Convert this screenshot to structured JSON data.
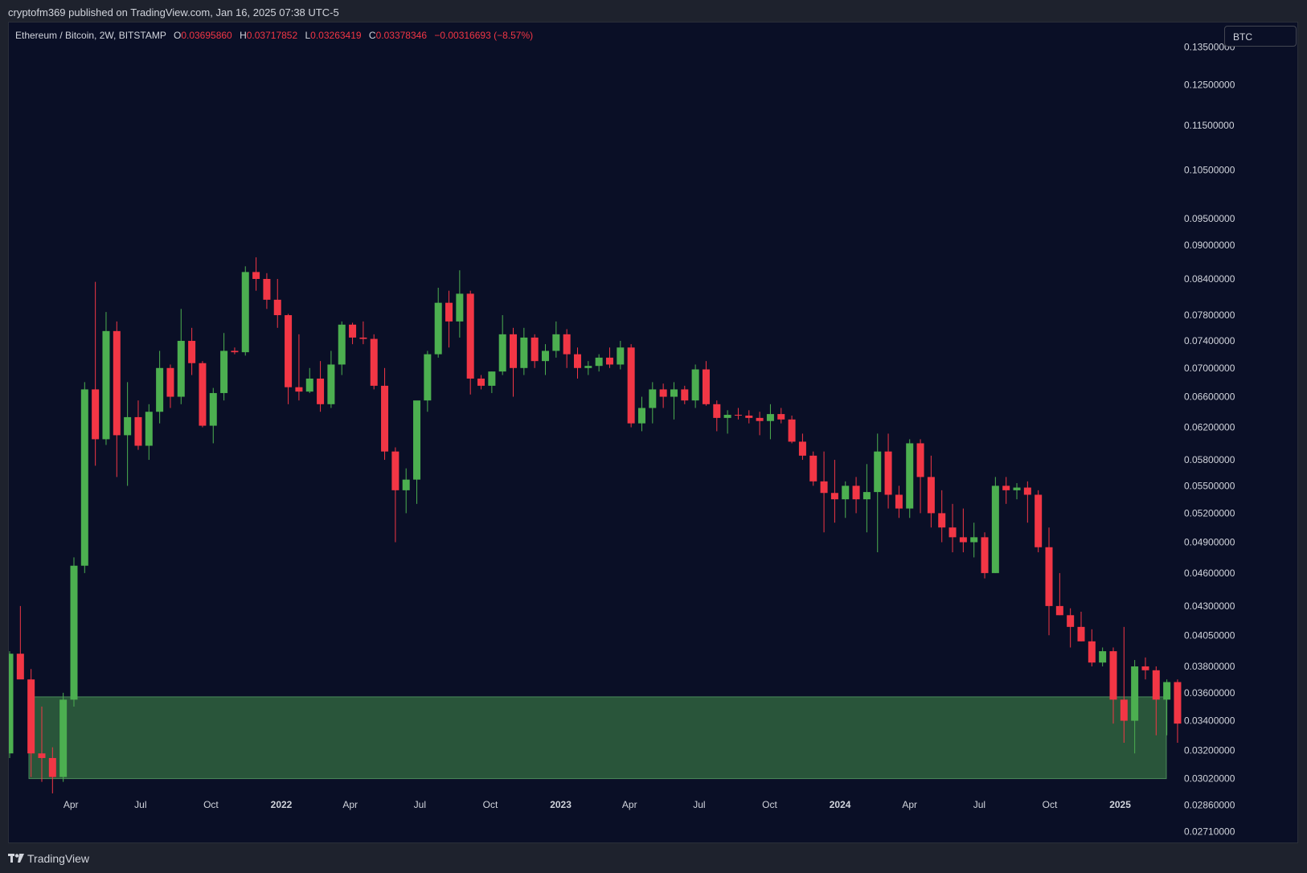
{
  "publisher_line": "cryptofm369 published on TradingView.com, Jan 16, 2025 07:38 UTC-5",
  "legend": {
    "symbol": "Ethereum / Bitcoin, 2W, BITSTAMP",
    "o_label": "O",
    "o_value": "0.03695860",
    "h_label": "H",
    "h_value": "0.03717852",
    "l_label": "L",
    "l_value": "0.03263419",
    "c_label": "C",
    "c_value": "0.03378346",
    "change": "−0.00316693 (−8.57%)"
  },
  "badge": "BTC",
  "footer": {
    "brand": "TradingView",
    "logo_icon": "tradingview-logo-icon"
  },
  "colors": {
    "up": "#4caf50",
    "down": "#f23645",
    "zone": "#2b5a3b",
    "zone_border": "#4a8a5a",
    "background": "#0a0f26"
  },
  "chart_data": {
    "type": "candlestick",
    "title": "Ethereum / Bitcoin, 2W, BITSTAMP",
    "y_scale": "log",
    "ylim": [
      0.0265,
      0.142
    ],
    "y_ticks": [
      "0.13500000",
      "0.12500000",
      "0.11500000",
      "0.10500000",
      "0.09500000",
      "0.09000000",
      "0.08400000",
      "0.07800000",
      "0.07400000",
      "0.07000000",
      "0.06600000",
      "0.06200000",
      "0.05800000",
      "0.05500000",
      "0.05200000",
      "0.04900000",
      "0.04600000",
      "0.04300000",
      "0.04050000",
      "0.03800000",
      "0.03600000",
      "0.03400000",
      "0.03200000",
      "0.03020000",
      "0.02860000",
      "0.02710000"
    ],
    "x_ticks": [
      {
        "label": "Apr",
        "date": "2021-04-01",
        "bold": false
      },
      {
        "label": "Jul",
        "date": "2021-07-01",
        "bold": false
      },
      {
        "label": "Oct",
        "date": "2021-10-01",
        "bold": false
      },
      {
        "label": "2022",
        "date": "2022-01-01",
        "bold": true
      },
      {
        "label": "Apr",
        "date": "2022-04-01",
        "bold": false
      },
      {
        "label": "Jul",
        "date": "2022-07-01",
        "bold": false
      },
      {
        "label": "Oct",
        "date": "2022-10-01",
        "bold": false
      },
      {
        "label": "2023",
        "date": "2023-01-01",
        "bold": true
      },
      {
        "label": "Apr",
        "date": "2023-04-01",
        "bold": false
      },
      {
        "label": "Jul",
        "date": "2023-07-01",
        "bold": false
      },
      {
        "label": "Oct",
        "date": "2023-10-01",
        "bold": false
      },
      {
        "label": "2024",
        "date": "2024-01-01",
        "bold": true
      },
      {
        "label": "Apr",
        "date": "2024-04-01",
        "bold": false
      },
      {
        "label": "Jul",
        "date": "2024-07-01",
        "bold": false
      },
      {
        "label": "Oct",
        "date": "2024-10-01",
        "bold": false
      },
      {
        "label": "2025",
        "date": "2025-01-01",
        "bold": true
      }
    ],
    "support_zone": {
      "low": 0.0302,
      "high": 0.0357
    },
    "candles": [
      [
        0.0318,
        0.0392,
        0.0315,
        0.039
      ],
      [
        0.039,
        0.043,
        0.0374,
        0.037
      ],
      [
        0.037,
        0.0378,
        0.0303,
        0.0318
      ],
      [
        0.0318,
        0.035,
        0.03,
        0.0315
      ],
      [
        0.0315,
        0.0322,
        0.0293,
        0.0303
      ],
      [
        0.0303,
        0.036,
        0.03,
        0.0355
      ],
      [
        0.0355,
        0.0475,
        0.035,
        0.0467
      ],
      [
        0.0467,
        0.068,
        0.046,
        0.067
      ],
      [
        0.067,
        0.0835,
        0.0573,
        0.0605
      ],
      [
        0.0605,
        0.0785,
        0.0598,
        0.0755
      ],
      [
        0.0755,
        0.077,
        0.056,
        0.061
      ],
      [
        0.061,
        0.068,
        0.055,
        0.0633
      ],
      [
        0.0633,
        0.0655,
        0.0592,
        0.0597
      ],
      [
        0.0597,
        0.065,
        0.058,
        0.064
      ],
      [
        0.064,
        0.0725,
        0.0625,
        0.07
      ],
      [
        0.07,
        0.0705,
        0.0645,
        0.066
      ],
      [
        0.066,
        0.079,
        0.065,
        0.074
      ],
      [
        0.074,
        0.076,
        0.069,
        0.0707
      ],
      [
        0.0707,
        0.071,
        0.062,
        0.0622
      ],
      [
        0.0622,
        0.0672,
        0.06,
        0.0665
      ],
      [
        0.0665,
        0.0752,
        0.0655,
        0.0725
      ],
      [
        0.0725,
        0.073,
        0.072,
        0.0723
      ],
      [
        0.0723,
        0.0862,
        0.0718,
        0.0852
      ],
      [
        0.0852,
        0.0878,
        0.082,
        0.084
      ],
      [
        0.084,
        0.085,
        0.079,
        0.0805
      ],
      [
        0.0805,
        0.084,
        0.076,
        0.078
      ],
      [
        0.078,
        0.0782,
        0.065,
        0.0673
      ],
      [
        0.0673,
        0.075,
        0.0655,
        0.0667
      ],
      [
        0.0667,
        0.07,
        0.0665,
        0.0685
      ],
      [
        0.0685,
        0.071,
        0.064,
        0.065
      ],
      [
        0.065,
        0.0725,
        0.0645,
        0.0705
      ],
      [
        0.0705,
        0.077,
        0.069,
        0.0765
      ],
      [
        0.0765,
        0.0768,
        0.0735,
        0.0745
      ],
      [
        0.0745,
        0.077,
        0.0735,
        0.0743
      ],
      [
        0.0743,
        0.075,
        0.067,
        0.0675
      ],
      [
        0.0675,
        0.07,
        0.058,
        0.059
      ],
      [
        0.059,
        0.0595,
        0.049,
        0.0545
      ],
      [
        0.0545,
        0.057,
        0.052,
        0.0557
      ],
      [
        0.0557,
        0.065,
        0.053,
        0.0655
      ],
      [
        0.0655,
        0.0725,
        0.064,
        0.072
      ],
      [
        0.072,
        0.0825,
        0.0715,
        0.08
      ],
      [
        0.08,
        0.082,
        0.073,
        0.077
      ],
      [
        0.077,
        0.0855,
        0.0745,
        0.0815
      ],
      [
        0.0815,
        0.082,
        0.0663,
        0.0685
      ],
      [
        0.0685,
        0.069,
        0.067,
        0.0675
      ],
      [
        0.0675,
        0.0695,
        0.0665,
        0.0695
      ],
      [
        0.0695,
        0.078,
        0.069,
        0.075
      ],
      [
        0.075,
        0.076,
        0.066,
        0.07
      ],
      [
        0.07,
        0.076,
        0.069,
        0.0745
      ],
      [
        0.0745,
        0.075,
        0.07,
        0.071
      ],
      [
        0.071,
        0.0735,
        0.069,
        0.0725
      ],
      [
        0.0725,
        0.077,
        0.0715,
        0.075
      ],
      [
        0.075,
        0.0758,
        0.07,
        0.072
      ],
      [
        0.072,
        0.073,
        0.0685,
        0.07
      ],
      [
        0.07,
        0.071,
        0.069,
        0.0703
      ],
      [
        0.0703,
        0.072,
        0.0695,
        0.0715
      ],
      [
        0.0715,
        0.073,
        0.07,
        0.0705
      ],
      [
        0.0705,
        0.074,
        0.0698,
        0.073
      ],
      [
        0.073,
        0.0735,
        0.062,
        0.0625
      ],
      [
        0.0625,
        0.066,
        0.0615,
        0.0645
      ],
      [
        0.0645,
        0.068,
        0.0625,
        0.067
      ],
      [
        0.067,
        0.0678,
        0.0645,
        0.066
      ],
      [
        0.066,
        0.068,
        0.063,
        0.067
      ],
      [
        0.067,
        0.0675,
        0.065,
        0.0655
      ],
      [
        0.0655,
        0.0705,
        0.0645,
        0.0698
      ],
      [
        0.0698,
        0.071,
        0.0648,
        0.065
      ],
      [
        0.065,
        0.0655,
        0.0615,
        0.0632
      ],
      [
        0.0632,
        0.0642,
        0.0612,
        0.0636
      ],
      [
        0.0636,
        0.0645,
        0.063,
        0.0635
      ],
      [
        0.0635,
        0.0642,
        0.0625,
        0.0632
      ],
      [
        0.0632,
        0.064,
        0.061,
        0.0628
      ],
      [
        0.0628,
        0.065,
        0.0605,
        0.0637
      ],
      [
        0.0637,
        0.0645,
        0.0625,
        0.063
      ],
      [
        0.063,
        0.0635,
        0.06,
        0.0602
      ],
      [
        0.0602,
        0.0612,
        0.058,
        0.0585
      ],
      [
        0.0585,
        0.059,
        0.055,
        0.0555
      ],
      [
        0.0555,
        0.059,
        0.05,
        0.0542
      ],
      [
        0.0542,
        0.058,
        0.051,
        0.0535
      ],
      [
        0.0535,
        0.0555,
        0.0515,
        0.055
      ],
      [
        0.055,
        0.056,
        0.052,
        0.0535
      ],
      [
        0.0535,
        0.0575,
        0.05,
        0.0543
      ],
      [
        0.0543,
        0.0612,
        0.048,
        0.059
      ],
      [
        0.059,
        0.0612,
        0.0525,
        0.054
      ],
      [
        0.054,
        0.055,
        0.0515,
        0.0525
      ],
      [
        0.0525,
        0.0605,
        0.0515,
        0.06
      ],
      [
        0.06,
        0.0605,
        0.052,
        0.056
      ],
      [
        0.056,
        0.0585,
        0.0505,
        0.052
      ],
      [
        0.052,
        0.0545,
        0.049,
        0.0505
      ],
      [
        0.0505,
        0.053,
        0.048,
        0.0495
      ],
      [
        0.0495,
        0.0525,
        0.048,
        0.049
      ],
      [
        0.049,
        0.051,
        0.0475,
        0.0495
      ],
      [
        0.0495,
        0.05,
        0.0455,
        0.046
      ],
      [
        0.046,
        0.056,
        0.046,
        0.055
      ],
      [
        0.055,
        0.056,
        0.053,
        0.0545
      ],
      [
        0.0545,
        0.0553,
        0.0535,
        0.0548
      ],
      [
        0.0548,
        0.0555,
        0.051,
        0.054
      ],
      [
        0.054,
        0.0545,
        0.048,
        0.0485
      ],
      [
        0.0485,
        0.0505,
        0.0405,
        0.043
      ],
      [
        0.043,
        0.046,
        0.0422,
        0.0422
      ],
      [
        0.0422,
        0.0428,
        0.0395,
        0.0412
      ],
      [
        0.0412,
        0.0425,
        0.04,
        0.04
      ],
      [
        0.04,
        0.041,
        0.038,
        0.0383
      ],
      [
        0.0383,
        0.0395,
        0.038,
        0.0392
      ],
      [
        0.0392,
        0.0395,
        0.0338,
        0.0355
      ],
      [
        0.0355,
        0.0412,
        0.0325,
        0.034
      ],
      [
        0.034,
        0.0385,
        0.0318,
        0.038
      ],
      [
        0.038,
        0.0387,
        0.037,
        0.0377
      ],
      [
        0.0377,
        0.038,
        0.033,
        0.0355
      ],
      [
        0.0355,
        0.037,
        0.033,
        0.0368
      ],
      [
        0.0368,
        0.037,
        0.0325,
        0.0338
      ]
    ]
  }
}
